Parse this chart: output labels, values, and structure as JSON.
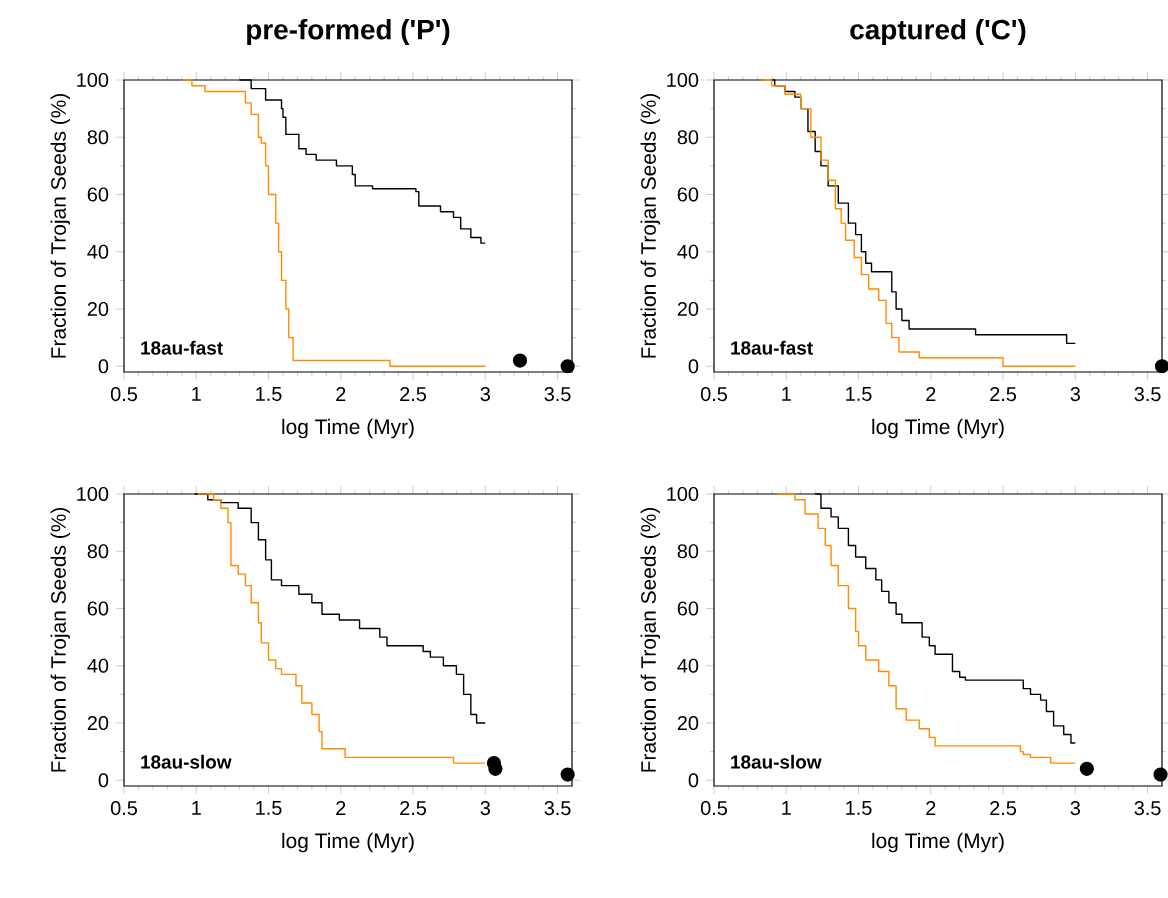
{
  "chart_data": [
    {
      "type": "step",
      "title": "pre-formed ('P')",
      "xlabel": "log Time (Myr)",
      "ylabel": "Fraction of Trojan Seeds (%)",
      "annotations": [
        "18au-fast"
      ],
      "xlim": [
        0.5,
        3.6
      ],
      "ylim": [
        -2,
        100
      ],
      "xticks": [
        0.5,
        1,
        1.5,
        2,
        2.5,
        3,
        3.5
      ],
      "yticks": [
        0,
        20,
        40,
        60,
        80,
        100
      ],
      "series": [
        {
          "color": "#000000",
          "x": [
            1.3,
            1.38,
            1.48,
            1.59,
            1.6,
            1.62,
            1.71,
            1.76,
            1.83,
            1.97,
            2.08,
            2.1,
            2.22,
            2.52,
            2.54,
            2.69,
            2.78,
            2.83,
            2.9,
            2.97,
            3.0
          ],
          "values": [
            100,
            97,
            93,
            90,
            87,
            81,
            76,
            74,
            72,
            70,
            67,
            63,
            62,
            61,
            56,
            54,
            52,
            48,
            45,
            43,
            43
          ]
        },
        {
          "color": "#ff8c00",
          "x": [
            0.9,
            0.97,
            1.06,
            1.34,
            1.38,
            1.43,
            1.45,
            1.48,
            1.5,
            1.55,
            1.57,
            1.59,
            1.62,
            1.64,
            1.67,
            2.34,
            3.0
          ],
          "values": [
            100,
            98,
            96,
            92,
            88,
            80,
            78,
            70,
            60,
            50,
            40,
            30,
            20,
            10,
            2,
            0,
            0
          ]
        },
        {
          "type": "scatter",
          "marker": "circle",
          "color": "#000000",
          "x": [
            3.24,
            3.57
          ],
          "values": [
            2,
            0
          ]
        }
      ]
    },
    {
      "type": "step",
      "title": "captured ('C')",
      "xlabel": "log Time (Myr)",
      "ylabel": "Fraction of Trojan Seeds (%)",
      "annotations": [
        "18au-fast"
      ],
      "xlim": [
        0.5,
        3.6
      ],
      "ylim": [
        -2,
        100
      ],
      "xticks": [
        0.5,
        1,
        1.5,
        2,
        2.5,
        3,
        3.5
      ],
      "yticks": [
        0,
        20,
        40,
        60,
        80,
        100
      ],
      "series": [
        {
          "color": "#000000",
          "x": [
            0.9,
            0.92,
            0.99,
            1.06,
            1.1,
            1.15,
            1.2,
            1.24,
            1.29,
            1.36,
            1.43,
            1.48,
            1.52,
            1.55,
            1.59,
            1.73,
            1.76,
            1.8,
            1.85,
            1.9,
            2.31,
            2.94,
            3.0
          ],
          "values": [
            100,
            98,
            96,
            94,
            90,
            82,
            75,
            70,
            63,
            57,
            50,
            46,
            40,
            36,
            33,
            26,
            20,
            16,
            13,
            13,
            11,
            8,
            8
          ]
        },
        {
          "color": "#ff8c00",
          "x": [
            0.83,
            0.9,
            0.99,
            1.1,
            1.17,
            1.24,
            1.29,
            1.34,
            1.38,
            1.41,
            1.47,
            1.52,
            1.57,
            1.64,
            1.69,
            1.73,
            1.78,
            1.92,
            2.5,
            3.0
          ],
          "values": [
            100,
            98,
            95,
            90,
            80,
            72,
            65,
            55,
            50,
            44,
            38,
            32,
            27,
            23,
            15,
            10,
            5,
            3,
            0,
            0
          ]
        },
        {
          "type": "scatter",
          "marker": "circle",
          "color": "#000000",
          "x": [
            3.6
          ],
          "values": [
            0
          ]
        }
      ]
    },
    {
      "type": "step",
      "xlabel": "log Time (Myr)",
      "ylabel": "Fraction of Trojan Seeds (%)",
      "annotations": [
        "18au-slow"
      ],
      "xlim": [
        0.5,
        3.6
      ],
      "ylim": [
        -2,
        100
      ],
      "xticks": [
        0.5,
        1,
        1.5,
        2,
        2.5,
        3,
        3.5
      ],
      "yticks": [
        0,
        20,
        40,
        60,
        80,
        100
      ],
      "series": [
        {
          "color": "#000000",
          "x": [
            0.99,
            1.08,
            1.17,
            1.29,
            1.38,
            1.43,
            1.48,
            1.52,
            1.59,
            1.71,
            1.8,
            1.87,
            1.99,
            2.13,
            2.27,
            2.32,
            2.57,
            2.62,
            2.71,
            2.8,
            2.85,
            2.9,
            2.94,
            3.0
          ],
          "values": [
            100,
            98,
            97,
            95,
            90,
            84,
            77,
            70,
            68,
            65,
            62,
            58,
            56,
            53,
            50,
            47,
            45,
            43,
            40,
            37,
            30,
            23,
            20,
            20
          ]
        },
        {
          "color": "#ff8c00",
          "x": [
            1.01,
            1.12,
            1.17,
            1.22,
            1.24,
            1.29,
            1.34,
            1.38,
            1.43,
            1.45,
            1.5,
            1.55,
            1.59,
            1.69,
            1.73,
            1.8,
            1.85,
            1.87,
            2.03,
            2.78,
            3.0
          ],
          "values": [
            100,
            98,
            95,
            90,
            75,
            72,
            68,
            62,
            55,
            48,
            42,
            39,
            37,
            33,
            27,
            23,
            17,
            11,
            8,
            6,
            6
          ]
        },
        {
          "type": "scatter",
          "marker": "circle",
          "color": "#000000",
          "x": [
            3.06,
            3.07,
            3.57
          ],
          "values": [
            6,
            4,
            2
          ]
        }
      ]
    },
    {
      "type": "step",
      "xlabel": "log Time (Myr)",
      "ylabel": "Fraction of Trojan Seeds (%)",
      "annotations": [
        "18au-slow"
      ],
      "xlim": [
        0.5,
        3.6
      ],
      "ylim": [
        -2,
        100
      ],
      "xticks": [
        0.5,
        1,
        1.5,
        2,
        2.5,
        3,
        3.5
      ],
      "yticks": [
        0,
        20,
        40,
        60,
        80,
        100
      ],
      "series": [
        {
          "color": "#000000",
          "x": [
            1.2,
            1.24,
            1.31,
            1.36,
            1.43,
            1.48,
            1.55,
            1.62,
            1.66,
            1.71,
            1.76,
            1.8,
            1.94,
            1.99,
            2.03,
            2.15,
            2.2,
            2.24,
            2.64,
            2.69,
            2.76,
            2.8,
            2.85,
            2.92,
            2.97,
            3.0
          ],
          "values": [
            100,
            95,
            92,
            88,
            82,
            78,
            74,
            70,
            66,
            62,
            58,
            55,
            50,
            47,
            44,
            38,
            36,
            35,
            32,
            30,
            28,
            24,
            19,
            16,
            13,
            13
          ]
        },
        {
          "color": "#ff8c00",
          "x": [
            0.94,
            1.06,
            1.13,
            1.22,
            1.27,
            1.31,
            1.36,
            1.43,
            1.48,
            1.5,
            1.55,
            1.64,
            1.71,
            1.76,
            1.83,
            1.92,
            1.99,
            2.03,
            2.62,
            2.64,
            2.69,
            2.83,
            3.0
          ],
          "values": [
            100,
            98,
            93,
            88,
            82,
            75,
            68,
            60,
            52,
            47,
            42,
            38,
            33,
            25,
            21,
            18,
            15,
            12,
            10,
            9,
            8,
            6,
            6
          ]
        },
        {
          "type": "scatter",
          "marker": "circle",
          "color": "#000000",
          "x": [
            3.08,
            3.59
          ],
          "values": [
            4,
            2
          ]
        }
      ]
    }
  ]
}
